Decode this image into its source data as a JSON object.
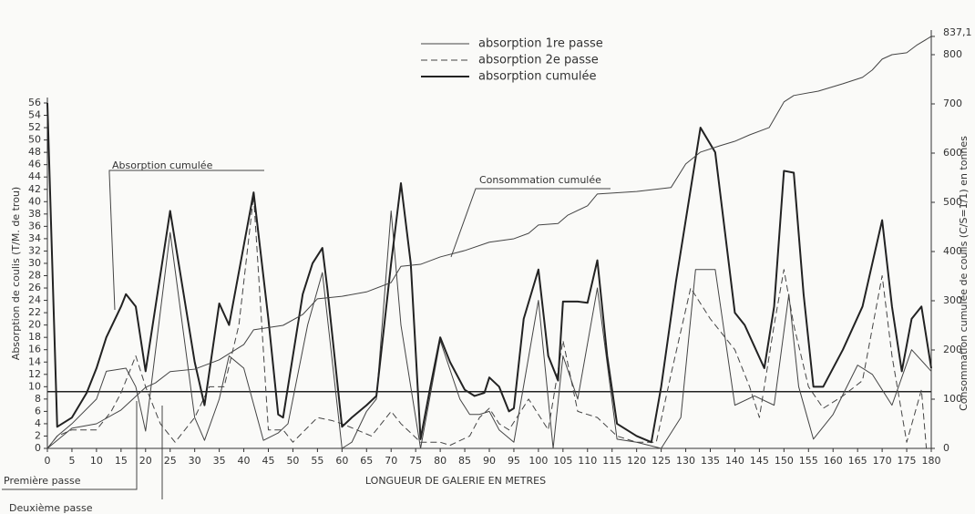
{
  "chart_data": {
    "type": "line",
    "xlabel": "LONGUEUR DE GALERIE EN METRES",
    "ylabel": "Absorption de coulis (T/M. de trou)",
    "y2label": "Consommation cumulée de coulis (C/S=1/1) en tonnes",
    "xlim": [
      0,
      180
    ],
    "xticks": [
      0,
      5,
      10,
      15,
      20,
      25,
      30,
      35,
      40,
      45,
      50,
      55,
      60,
      65,
      70,
      75,
      80,
      85,
      90,
      95,
      100,
      105,
      110,
      115,
      120,
      125,
      130,
      135,
      140,
      145,
      150,
      155,
      160,
      165,
      170,
      175,
      180
    ],
    "ylim": [
      0,
      56
    ],
    "yticks": [
      0,
      2,
      4,
      6,
      8,
      10,
      12,
      14,
      16,
      18,
      20,
      22,
      24,
      26,
      28,
      30,
      32,
      34,
      36,
      38,
      40,
      42,
      44,
      46,
      48,
      50,
      52,
      54,
      56
    ],
    "y2lim": [
      0,
      850
    ],
    "y2ticks": [
      0,
      100,
      200,
      300,
      400,
      500,
      600,
      700,
      800,
      {
        "value": 837.1,
        "label": "837,1"
      }
    ],
    "hline": 9.2,
    "annotations": [
      "Absorption cumulée",
      "Consommation cumulée",
      "Première passe",
      "Deuxième passe"
    ],
    "series": [
      {
        "name": "absorption 1re passe",
        "color": "#444",
        "width": 1,
        "dashed": false,
        "x": [
          0,
          2,
          5,
          10,
          12,
          16,
          18,
          20,
          25,
          30,
          32,
          35,
          37,
          40,
          44,
          47,
          49,
          53,
          56,
          60,
          62,
          65,
          67,
          70,
          72,
          76,
          80,
          84,
          86,
          88,
          90,
          92,
          95,
          100,
          103,
          105,
          108,
          112,
          116,
          120,
          125,
          129,
          132,
          136,
          140,
          144,
          148,
          151,
          153,
          156,
          160,
          165,
          168,
          172,
          176,
          180
        ],
        "values": [
          0,
          2,
          4,
          8,
          12.5,
          13,
          10,
          2.8,
          35,
          5,
          1.3,
          8,
          15,
          13,
          1.3,
          2.5,
          4,
          20,
          28.5,
          0,
          1,
          6,
          8,
          38.5,
          20,
          0,
          17.5,
          8,
          5.5,
          5.5,
          6,
          3,
          1,
          24,
          0,
          15,
          8,
          26,
          1.5,
          1,
          0,
          5,
          29,
          29,
          7,
          8.5,
          7,
          25,
          10,
          1.5,
          5.5,
          13.5,
          12,
          7,
          16,
          12.5
        ]
      },
      {
        "name": "absorption 2e passe",
        "color": "#444",
        "width": 1,
        "dashed": true,
        "x": [
          0,
          2,
          5,
          8,
          10,
          13,
          15,
          18,
          20,
          23,
          26,
          30,
          33,
          36,
          39,
          42,
          45,
          48,
          50,
          55,
          58,
          60,
          63,
          66,
          70,
          72,
          76,
          80,
          82,
          86,
          88,
          90,
          92,
          94,
          98,
          102,
          105,
          108,
          112,
          116,
          120,
          124,
          127,
          131,
          135,
          140,
          143,
          145,
          148,
          150,
          152,
          155,
          158,
          162,
          166,
          170,
          172,
          175,
          178,
          179
        ],
        "values": [
          0,
          2,
          3,
          3,
          3,
          6,
          9,
          15,
          10,
          4,
          1,
          5,
          10,
          10,
          20,
          41,
          3,
          3,
          1,
          5,
          4.5,
          4,
          3,
          2,
          6,
          4,
          1,
          1,
          0.5,
          2,
          5,
          6.5,
          4,
          3,
          8,
          3,
          17.5,
          6,
          5,
          2,
          1,
          1,
          12,
          26,
          21,
          16,
          10,
          5,
          20,
          29,
          20,
          10,
          6.5,
          8.5,
          11,
          28,
          15,
          1,
          9.5,
          0
        ]
      },
      {
        "name": "absorption cumulée",
        "color": "#222",
        "width": 2,
        "dashed": false,
        "x": [
          0,
          2,
          5,
          8,
          10,
          12,
          15,
          16,
          18,
          20,
          25,
          30,
          32,
          35,
          37,
          42,
          45,
          47,
          48,
          52,
          54,
          56,
          57,
          60,
          62,
          65,
          67,
          70,
          72,
          74,
          76,
          78,
          80,
          82,
          85,
          87,
          89,
          90,
          92,
          94,
          95,
          97,
          100,
          102,
          104,
          105,
          108,
          110,
          112,
          114,
          116,
          120,
          123,
          125,
          128,
          130,
          133,
          136,
          140,
          142,
          144,
          146,
          148,
          150,
          152,
          154,
          156,
          158,
          162,
          166,
          170,
          172,
          174,
          176,
          178,
          180
        ],
        "values": [
          56,
          3.5,
          5,
          9,
          13,
          18,
          23,
          25,
          23,
          12.5,
          38.5,
          14,
          7,
          23.5,
          20,
          41.5,
          21,
          5.5,
          5,
          25,
          30,
          32.5,
          26,
          3.5,
          5,
          7,
          8.5,
          30,
          43,
          30,
          1.5,
          10,
          18,
          14,
          9.5,
          8.5,
          9,
          11.5,
          10,
          6,
          6.5,
          21,
          29,
          15,
          11,
          23.8,
          23.8,
          23.6,
          30.5,
          15,
          4,
          2,
          1,
          10,
          27,
          37,
          52,
          48,
          22,
          20,
          16.5,
          13,
          23,
          45,
          44.7,
          25,
          10,
          10,
          16,
          23,
          37,
          23,
          12.5,
          21,
          23,
          13
        ]
      },
      {
        "name": "Consommation cumulée",
        "color": "#444",
        "width": 1,
        "dashed": false,
        "axis": "y2",
        "x": [
          0,
          5,
          10,
          15,
          20,
          22,
          25,
          30,
          35,
          40,
          42,
          48,
          52,
          55,
          60,
          65,
          70,
          72,
          76,
          80,
          85,
          90,
          95,
          98,
          100,
          104,
          106,
          110,
          112,
          120,
          127,
          130,
          133,
          137,
          140,
          143,
          147,
          150,
          152,
          157,
          162,
          166,
          168,
          170,
          172,
          175,
          177,
          180
        ],
        "values": [
          0,
          41,
          50,
          78,
          124,
          133,
          156,
          161,
          180,
          211,
          241,
          250,
          272,
          304,
          309,
          318,
          337,
          370,
          374,
          389,
          402,
          419,
          426,
          437,
          454,
          457,
          474,
          493,
          517,
          522,
          530,
          578,
          602,
          615,
          624,
          637,
          652,
          704,
          717,
          726,
          741,
          754,
          769,
          791,
          800,
          804,
          819,
          837.1
        ]
      }
    ]
  }
}
